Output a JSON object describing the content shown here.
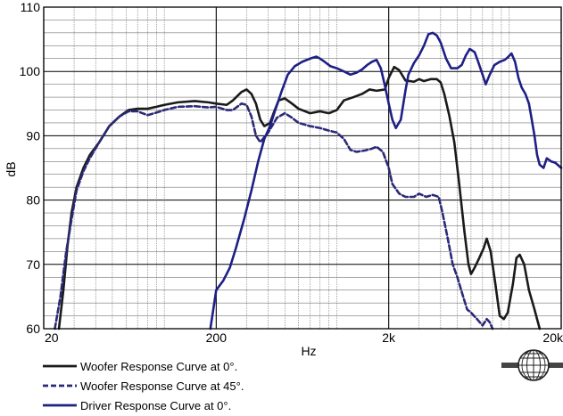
{
  "chart_data": {
    "type": "line",
    "title": "",
    "xlabel": "Hz",
    "ylabel": "dB",
    "x_scale": "log",
    "xlim": [
      20,
      20000
    ],
    "ylim": [
      60,
      110
    ],
    "grid": true,
    "legend_position": "bottom-left",
    "x_tick_values": [
      20,
      200,
      2000,
      20000
    ],
    "x_tick_labels": [
      "20",
      "200",
      "2k",
      "20k"
    ],
    "y_tick_values": [
      60,
      70,
      80,
      90,
      100,
      110
    ],
    "y_tick_labels": [
      "60",
      "70",
      "80",
      "90",
      "100",
      "110"
    ],
    "series": [
      {
        "name": "Woofer Response Curve at 0°.",
        "color": "#1a1a1a",
        "dash": "solid",
        "points": [
          [
            24.5,
            60
          ],
          [
            26,
            66
          ],
          [
            27.5,
            73
          ],
          [
            29,
            78
          ],
          [
            31,
            82
          ],
          [
            34,
            85
          ],
          [
            37,
            87
          ],
          [
            42,
            89
          ],
          [
            48,
            91.5
          ],
          [
            55,
            93
          ],
          [
            62,
            94
          ],
          [
            70,
            94.2
          ],
          [
            80,
            94.2
          ],
          [
            90,
            94.5
          ],
          [
            100,
            94.8
          ],
          [
            120,
            95.2
          ],
          [
            150,
            95.4
          ],
          [
            180,
            95.2
          ],
          [
            200,
            95
          ],
          [
            230,
            94.8
          ],
          [
            250,
            95.5
          ],
          [
            280,
            96.8
          ],
          [
            300,
            97.2
          ],
          [
            320,
            96.5
          ],
          [
            340,
            95
          ],
          [
            360,
            92.5
          ],
          [
            380,
            91.5
          ],
          [
            410,
            92
          ],
          [
            430,
            93.5
          ],
          [
            460,
            95.5
          ],
          [
            500,
            95.8
          ],
          [
            550,
            95
          ],
          [
            600,
            94.2
          ],
          [
            700,
            93.5
          ],
          [
            800,
            93.8
          ],
          [
            900,
            93.5
          ],
          [
            1000,
            94
          ],
          [
            1100,
            95.5
          ],
          [
            1250,
            96
          ],
          [
            1400,
            96.5
          ],
          [
            1550,
            97.2
          ],
          [
            1700,
            97
          ],
          [
            1900,
            97.2
          ],
          [
            2000,
            99
          ],
          [
            2150,
            100.7
          ],
          [
            2300,
            100.2
          ],
          [
            2500,
            98.6
          ],
          [
            2800,
            98.4
          ],
          [
            3000,
            98.8
          ],
          [
            3200,
            98.5
          ],
          [
            3500,
            98.8
          ],
          [
            3800,
            98.8
          ],
          [
            4000,
            98.3
          ],
          [
            4200,
            96.5
          ],
          [
            4500,
            93
          ],
          [
            4800,
            89
          ],
          [
            5100,
            83
          ],
          [
            5500,
            75
          ],
          [
            5800,
            70
          ],
          [
            6000,
            68.5
          ],
          [
            6300,
            69.5
          ],
          [
            6700,
            71
          ],
          [
            7100,
            72.5
          ],
          [
            7400,
            74
          ],
          [
            7800,
            72
          ],
          [
            8300,
            67
          ],
          [
            8800,
            62
          ],
          [
            9300,
            61.5
          ],
          [
            9800,
            62.5
          ],
          [
            10500,
            67
          ],
          [
            11000,
            71
          ],
          [
            11500,
            71.5
          ],
          [
            12200,
            70
          ],
          [
            13000,
            66
          ],
          [
            14000,
            63
          ],
          [
            15000,
            60
          ]
        ]
      },
      {
        "name": "Woofer Response Curve at 45°.",
        "color": "#2a2a78",
        "dash": "dashed",
        "points": [
          [
            23.2,
            60
          ],
          [
            25,
            65
          ],
          [
            27,
            72
          ],
          [
            29,
            77
          ],
          [
            31,
            81.5
          ],
          [
            34,
            84.5
          ],
          [
            37,
            86.5
          ],
          [
            42,
            89
          ],
          [
            48,
            91.5
          ],
          [
            55,
            93
          ],
          [
            62,
            93.8
          ],
          [
            70,
            93.8
          ],
          [
            80,
            93.2
          ],
          [
            90,
            93.6
          ],
          [
            100,
            94
          ],
          [
            120,
            94.5
          ],
          [
            150,
            94.6
          ],
          [
            180,
            94.4
          ],
          [
            200,
            94.5
          ],
          [
            230,
            94
          ],
          [
            250,
            94
          ],
          [
            280,
            95
          ],
          [
            300,
            94.8
          ],
          [
            320,
            93
          ],
          [
            340,
            90
          ],
          [
            360,
            89
          ],
          [
            400,
            90.5
          ],
          [
            450,
            92.8
          ],
          [
            500,
            93.5
          ],
          [
            550,
            92.8
          ],
          [
            600,
            92
          ],
          [
            700,
            91.5
          ],
          [
            800,
            91.2
          ],
          [
            900,
            90.8
          ],
          [
            1000,
            90.5
          ],
          [
            1100,
            89.5
          ],
          [
            1200,
            87.8
          ],
          [
            1300,
            87.5
          ],
          [
            1450,
            87.7
          ],
          [
            1600,
            88
          ],
          [
            1700,
            88.3
          ],
          [
            1850,
            87.5
          ],
          [
            2000,
            85
          ],
          [
            2100,
            82.5
          ],
          [
            2300,
            81
          ],
          [
            2500,
            80.5
          ],
          [
            2800,
            80.5
          ],
          [
            3000,
            81
          ],
          [
            3300,
            80.5
          ],
          [
            3600,
            80.8
          ],
          [
            3900,
            80.5
          ],
          [
            4100,
            78
          ],
          [
            4400,
            74
          ],
          [
            4700,
            70
          ],
          [
            5000,
            68
          ],
          [
            5400,
            65
          ],
          [
            5700,
            63
          ],
          [
            6000,
            62.5
          ],
          [
            6500,
            61.5
          ],
          [
            7000,
            60.5
          ],
          [
            7400,
            61.5
          ],
          [
            7700,
            61
          ],
          [
            8000,
            60
          ]
        ]
      },
      {
        "name": "Driver Response Curve at 0°.",
        "color": "#1f1f86",
        "dash": "solid",
        "points": [
          [
            185,
            60
          ],
          [
            200,
            66
          ],
          [
            220,
            67.5
          ],
          [
            240,
            69.5
          ],
          [
            260,
            72.5
          ],
          [
            290,
            77
          ],
          [
            320,
            81.5
          ],
          [
            350,
            86
          ],
          [
            380,
            89.5
          ],
          [
            410,
            91.5
          ],
          [
            440,
            94
          ],
          [
            480,
            97
          ],
          [
            520,
            99.5
          ],
          [
            570,
            100.8
          ],
          [
            630,
            101.5
          ],
          [
            700,
            102
          ],
          [
            760,
            102.3
          ],
          [
            800,
            102
          ],
          [
            850,
            101.5
          ],
          [
            920,
            100.8
          ],
          [
            1000,
            100.5
          ],
          [
            1100,
            100
          ],
          [
            1200,
            99.5
          ],
          [
            1300,
            99.8
          ],
          [
            1400,
            100.3
          ],
          [
            1500,
            101
          ],
          [
            1600,
            101.5
          ],
          [
            1700,
            101.8
          ],
          [
            1800,
            100.5
          ],
          [
            1900,
            97.8
          ],
          [
            2000,
            95
          ],
          [
            2100,
            92.5
          ],
          [
            2200,
            91.2
          ],
          [
            2350,
            92.5
          ],
          [
            2500,
            97
          ],
          [
            2600,
            99.5
          ],
          [
            2800,
            101.3
          ],
          [
            3000,
            102.5
          ],
          [
            3200,
            104
          ],
          [
            3400,
            105.8
          ],
          [
            3600,
            106
          ],
          [
            3800,
            105.6
          ],
          [
            4000,
            104.5
          ],
          [
            4300,
            102
          ],
          [
            4600,
            100.5
          ],
          [
            5000,
            100.5
          ],
          [
            5300,
            101
          ],
          [
            5600,
            102.5
          ],
          [
            5900,
            103.5
          ],
          [
            6300,
            103
          ],
          [
            6600,
            101.5
          ],
          [
            7000,
            99.5
          ],
          [
            7300,
            98
          ],
          [
            7700,
            99.5
          ],
          [
            8200,
            101
          ],
          [
            8800,
            101.5
          ],
          [
            9400,
            101.8
          ],
          [
            9800,
            102.2
          ],
          [
            10300,
            102.8
          ],
          [
            10800,
            101.5
          ],
          [
            11300,
            99
          ],
          [
            11800,
            97.5
          ],
          [
            12400,
            96.5
          ],
          [
            13000,
            95
          ],
          [
            13500,
            92.5
          ],
          [
            14000,
            90
          ],
          [
            14500,
            87
          ],
          [
            15000,
            85.5
          ],
          [
            15800,
            85
          ],
          [
            16500,
            86.5
          ],
          [
            17500,
            86
          ],
          [
            18500,
            85.8
          ],
          [
            20000,
            85
          ]
        ]
      }
    ]
  },
  "logo": {
    "name": "manufacturer-globe-logo"
  }
}
